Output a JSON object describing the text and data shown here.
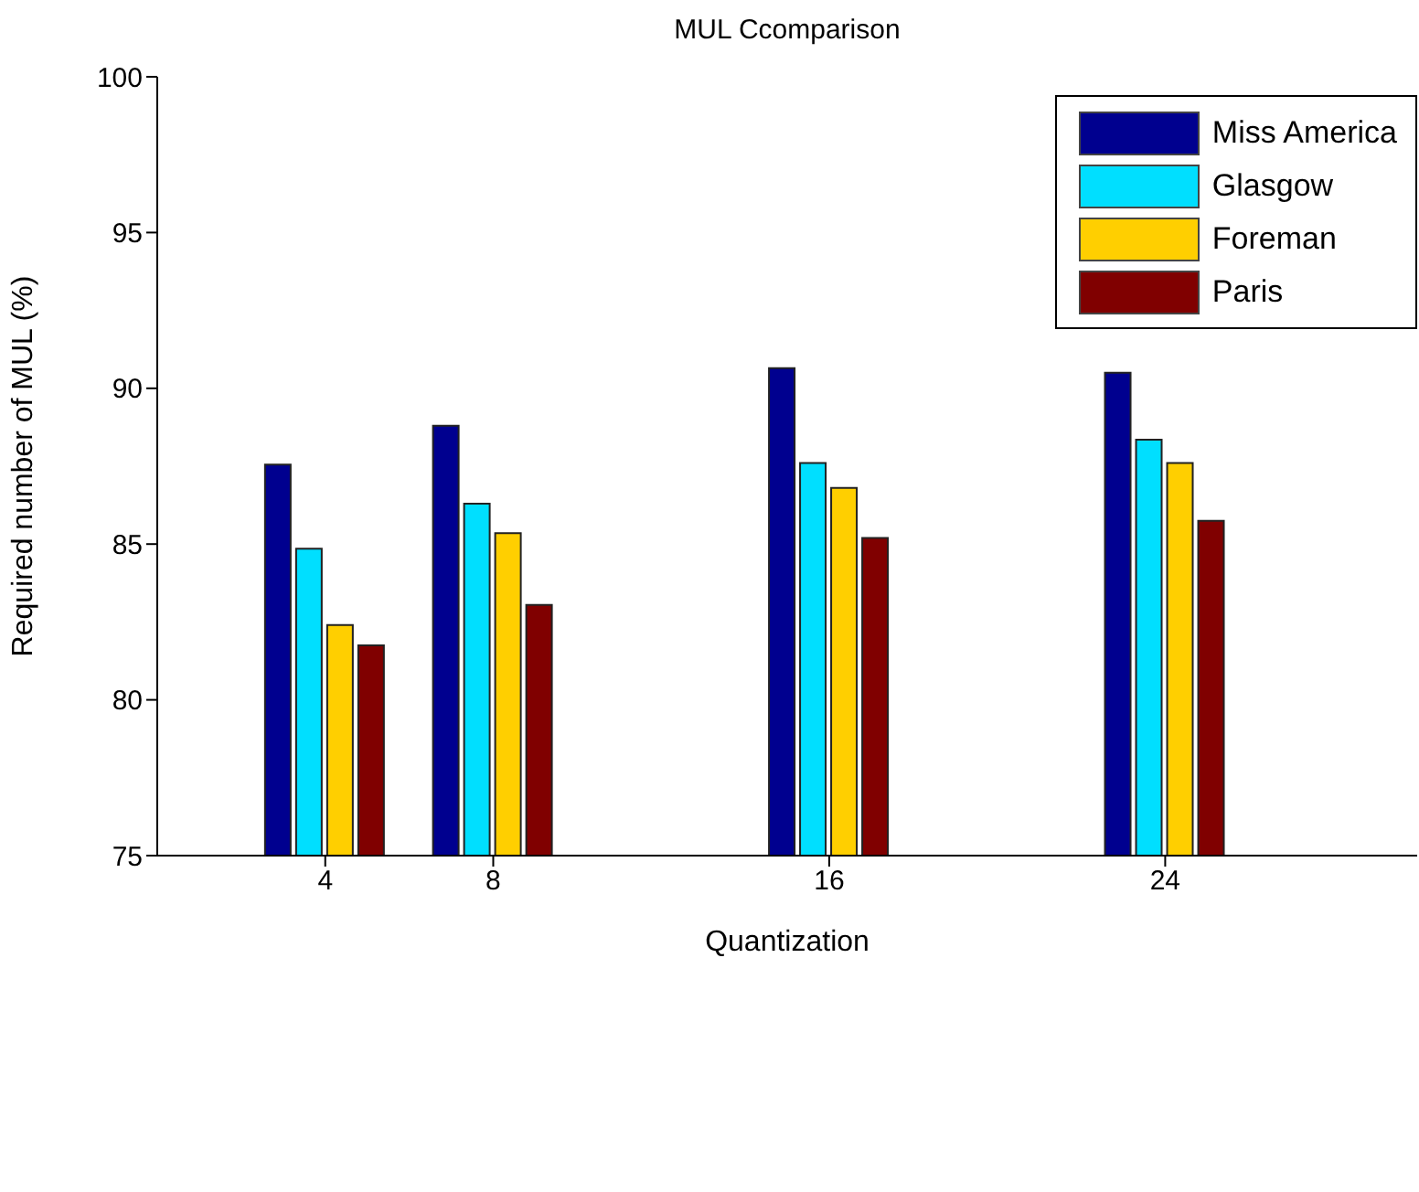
{
  "chart_data": {
    "type": "bar",
    "title": "MUL Ccomparison",
    "xlabel": "Quantization",
    "ylabel": "Required number of MUL (%)",
    "x": [
      4,
      8,
      16,
      24
    ],
    "xlim": [
      0,
      30
    ],
    "xticks": [
      4,
      8,
      16,
      24
    ],
    "ylim": [
      75,
      100
    ],
    "yticks": [
      75,
      80,
      85,
      90,
      95,
      100
    ],
    "series": [
      {
        "name": "Miss America",
        "color": "#00008f",
        "values": [
          87.55,
          88.8,
          90.65,
          90.5
        ]
      },
      {
        "name": "Glasgow",
        "color": "#00dfff",
        "values": [
          84.85,
          86.3,
          87.6,
          88.35
        ]
      },
      {
        "name": "Foreman",
        "color": "#ffcf00",
        "values": [
          82.4,
          85.35,
          86.8,
          87.6
        ]
      },
      {
        "name": "Paris",
        "color": "#800000",
        "values": [
          81.75,
          83.05,
          85.2,
          85.75
        ]
      }
    ],
    "legend": "top right",
    "grid": false
  }
}
